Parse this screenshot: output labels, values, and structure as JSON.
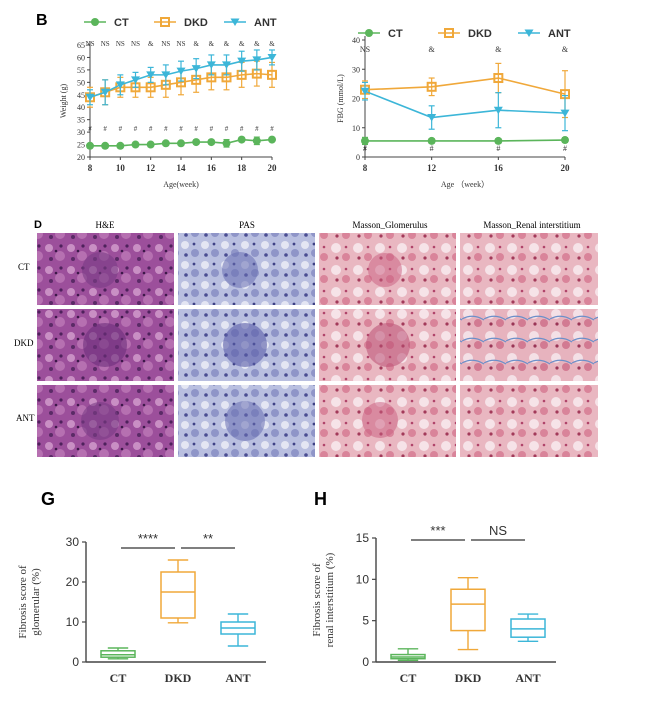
{
  "figure": {
    "panel_B": "B",
    "panel_D": "D",
    "panel_G": "G",
    "panel_H": "H"
  },
  "colors": {
    "CT": "#5bb55b",
    "DKD": "#f0a83a",
    "ANT": "#3cb6d8",
    "axis": "#444444",
    "text": "#222222"
  },
  "chart_data": [
    {
      "id": "weight",
      "type": "line",
      "xlabel": "Age(week)",
      "ylabel": "Weight (g)",
      "x": [
        8,
        9,
        10,
        11,
        12,
        13,
        14,
        15,
        16,
        17,
        18,
        19,
        20
      ],
      "xticks": [
        "8",
        "10",
        "12",
        "14",
        "16",
        "18",
        "20"
      ],
      "yticks": [
        "20",
        "25",
        "30",
        "35",
        "40",
        "45",
        "50",
        "55",
        "60",
        "65"
      ],
      "xlim": [
        8,
        20
      ],
      "ylim": [
        20,
        65
      ],
      "series": [
        {
          "name": "CT",
          "marker": "circle",
          "values": [
            24.5,
            24.5,
            24.5,
            25,
            25,
            25.5,
            25.5,
            26,
            26,
            25.5,
            27,
            26.5,
            27
          ],
          "err": [
            0.8,
            0.8,
            0.8,
            0.8,
            0.8,
            0.8,
            0.8,
            0.8,
            0.8,
            1.5,
            0.8,
            1.5,
            0.8
          ]
        },
        {
          "name": "DKD",
          "marker": "square",
          "values": [
            44,
            46,
            48,
            48,
            48,
            49,
            50,
            51,
            52,
            52,
            53,
            53.5,
            53
          ],
          "err": [
            4,
            5,
            4,
            4,
            4,
            5,
            5,
            5,
            5,
            5,
            5,
            5,
            5
          ]
        },
        {
          "name": "ANT",
          "marker": "triangle",
          "values": [
            44,
            46,
            49,
            51,
            53,
            53,
            54.5,
            55.5,
            57,
            57,
            58.5,
            59,
            60
          ],
          "err": [
            3,
            5,
            4,
            3,
            3,
            4,
            4,
            4,
            4,
            4,
            4,
            4,
            3
          ]
        }
      ],
      "annot_top": [
        "NS",
        "NS",
        "NS",
        "NS",
        "&",
        "NS",
        "NS",
        "&",
        "&",
        "&",
        "&",
        "&",
        "&"
      ],
      "annot_bottom": [
        "#",
        "#",
        "#",
        "#",
        "#",
        "#",
        "#",
        "#",
        "#",
        "#",
        "#",
        "#",
        "#"
      ]
    },
    {
      "id": "fbg",
      "type": "line",
      "xlabel": "Age （week）",
      "ylabel": "FBG (mmol/L)",
      "x": [
        8,
        12,
        16,
        20
      ],
      "xticks": [
        "8",
        "12",
        "16",
        "20"
      ],
      "yticks": [
        "0",
        "10",
        "20",
        "30",
        "40"
      ],
      "xlim": [
        8,
        20
      ],
      "ylim": [
        0,
        40
      ],
      "series": [
        {
          "name": "CT",
          "marker": "circle",
          "values": [
            5.5,
            5.5,
            5.5,
            5.8
          ],
          "err": [
            1.2,
            0.8,
            0.8,
            0.8
          ]
        },
        {
          "name": "DKD",
          "marker": "square",
          "values": [
            23,
            24,
            27,
            21.5
          ],
          "err": [
            3,
            3,
            5,
            8
          ]
        },
        {
          "name": "ANT",
          "marker": "triangle",
          "values": [
            22.5,
            13.5,
            16,
            15
          ],
          "err": [
            3,
            4,
            6,
            6
          ]
        }
      ],
      "annot_top": [
        "NS",
        "&",
        "&",
        "&"
      ],
      "annot_bottom": [
        "#",
        "#",
        "#",
        "#"
      ]
    },
    {
      "id": "glom",
      "type": "box",
      "panel": "G",
      "ylabel_lines": [
        "Fibrosis score of",
        "glomerular (%)"
      ],
      "categories": [
        "CT",
        "DKD",
        "ANT"
      ],
      "yticks": [
        "0",
        "10",
        "20",
        "30"
      ],
      "ylim": [
        0,
        30
      ],
      "boxes": [
        {
          "min": 0.8,
          "q1": 1.2,
          "median": 1.8,
          "q3": 2.8,
          "max": 3.5
        },
        {
          "min": 9.8,
          "q1": 11,
          "median": 17.5,
          "q3": 22.5,
          "max": 25.5
        },
        {
          "min": 4,
          "q1": 7,
          "median": 8.5,
          "q3": 10,
          "max": 12
        }
      ],
      "significance": [
        {
          "from": 0,
          "to": 1,
          "label": "****"
        },
        {
          "from": 1,
          "to": 2,
          "label": "**"
        }
      ]
    },
    {
      "id": "interstitial",
      "type": "box",
      "panel": "H",
      "ylabel_lines": [
        "Fibrosis score of",
        "renal interstitium (%)"
      ],
      "categories": [
        "CT",
        "DKD",
        "ANT"
      ],
      "yticks": [
        "0",
        "5",
        "10",
        "15"
      ],
      "ylim": [
        0,
        15
      ],
      "boxes": [
        {
          "min": 0.2,
          "q1": 0.4,
          "median": 0.6,
          "q3": 0.9,
          "max": 1.6
        },
        {
          "min": 1.5,
          "q1": 3.8,
          "median": 7,
          "q3": 8.8,
          "max": 10.2
        },
        {
          "min": 2.5,
          "q1": 3,
          "median": 4,
          "q3": 5.2,
          "max": 5.8
        }
      ],
      "significance": [
        {
          "from": 0,
          "to": 1,
          "label": "***"
        },
        {
          "from": 1,
          "to": 2,
          "label": "NS"
        }
      ]
    }
  ],
  "histology": {
    "columns": [
      "H&E",
      "PAS",
      "Masson_Glomerulus",
      "Masson_Renal interstitium"
    ],
    "rows": [
      "CT",
      "DKD",
      "ANT"
    ]
  }
}
